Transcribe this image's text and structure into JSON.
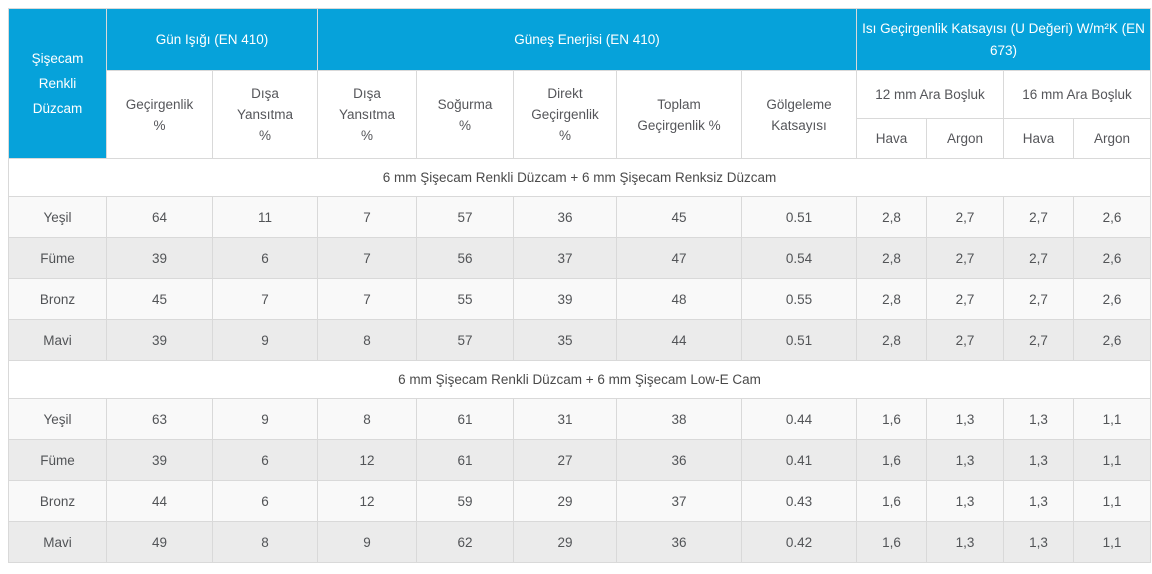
{
  "chart_data": {
    "type": "table",
    "title": "Şişecam Renkli Düzcam performance table",
    "corner_title": "Şişecam\nRenkli\nDüzcam",
    "groups": [
      "Gün Işığı (EN 410)",
      "Güneş Enerjisi (EN 410)",
      "Isı Geçirgenlik Katsayısı (U Değeri) W/m²K (EN 673)"
    ],
    "columns": [
      "Geçirgenlik\n%",
      "Dışa\nYansıtma\n%",
      "Dışa\nYansıtma\n%",
      "Soğurma\n%",
      "Direkt\nGeçirgenlik\n%",
      "Toplam\nGeçirgenlik %",
      "Gölgeleme\nKatsayısı"
    ],
    "spacer_groups": [
      "12 mm Ara Boşluk",
      "16 mm Ara Boşluk"
    ],
    "gas_columns": [
      "Hava",
      "Argon",
      "Hava",
      "Argon"
    ],
    "sections": [
      {
        "title": "6 mm Şişecam Renkli Düzcam + 6 mm Şişecam Renksiz Düzcam",
        "rows": [
          {
            "label": "Yeşil",
            "values": [
              "64",
              "11",
              "7",
              "57",
              "36",
              "45",
              "0.51",
              "2,8",
              "2,7",
              "2,7",
              "2,6"
            ]
          },
          {
            "label": "Füme",
            "values": [
              "39",
              "6",
              "7",
              "56",
              "37",
              "47",
              "0.54",
              "2,8",
              "2,7",
              "2,7",
              "2,6"
            ]
          },
          {
            "label": "Bronz",
            "values": [
              "45",
              "7",
              "7",
              "55",
              "39",
              "48",
              "0.55",
              "2,8",
              "2,7",
              "2,7",
              "2,6"
            ]
          },
          {
            "label": "Mavi",
            "values": [
              "39",
              "9",
              "8",
              "57",
              "35",
              "44",
              "0.51",
              "2,8",
              "2,7",
              "2,7",
              "2,6"
            ]
          }
        ]
      },
      {
        "title": "6 mm Şişecam Renkli Düzcam + 6 mm Şişecam Low-E Cam",
        "rows": [
          {
            "label": "Yeşil",
            "values": [
              "63",
              "9",
              "8",
              "61",
              "31",
              "38",
              "0.44",
              "1,6",
              "1,3",
              "1,3",
              "1,1"
            ]
          },
          {
            "label": "Füme",
            "values": [
              "39",
              "6",
              "12",
              "61",
              "27",
              "36",
              "0.41",
              "1,6",
              "1,3",
              "1,3",
              "1,1"
            ]
          },
          {
            "label": "Bronz",
            "values": [
              "44",
              "6",
              "12",
              "59",
              "29",
              "37",
              "0.43",
              "1,6",
              "1,3",
              "1,3",
              "1,1"
            ]
          },
          {
            "label": "Mavi",
            "values": [
              "49",
              "8",
              "9",
              "62",
              "29",
              "36",
              "0.42",
              "1,6",
              "1,3",
              "1,3",
              "1,1"
            ]
          }
        ]
      }
    ],
    "colors": {
      "header_blue": "#06a2da",
      "header_text": "#ffffff",
      "row_light": "#f9f9f9",
      "row_dark": "#ebebeb",
      "border": "#d9d9d9",
      "text": "#525457"
    },
    "layout": {
      "column_count": 12,
      "grid": "on",
      "alternating_rows": true
    }
  }
}
